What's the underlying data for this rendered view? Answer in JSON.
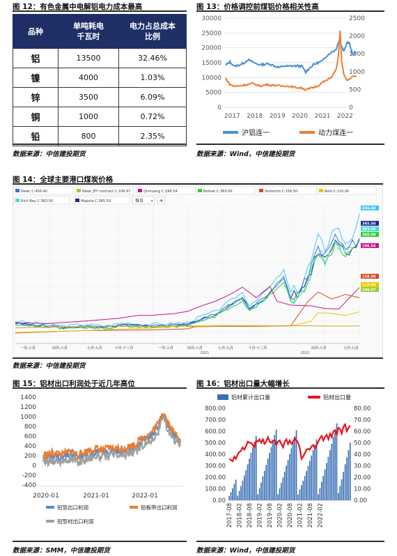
{
  "fig12": {
    "title": "图 12：有色金属中电解铝电力成本最高",
    "headers": [
      "品种",
      "单吨耗电\n千瓦时",
      "电力占总成本\n比例"
    ],
    "rows": [
      [
        "铝",
        "13500",
        "32.46%"
      ],
      [
        "镍",
        "4000",
        "1.03%"
      ],
      [
        "锌",
        "3500",
        "6.09%"
      ],
      [
        "铜",
        "1000",
        "0.72%"
      ],
      [
        "铅",
        "800",
        "2.35%"
      ]
    ],
    "source": "数据来源：中信建投期货"
  },
  "fig13": {
    "title": "图 13：价格调控前煤铝价格相关性高",
    "source": "数据来源：Wind，中信建投期货",
    "chart_data": {
      "type": "line",
      "x_ticks": [
        "2017",
        "2018",
        "2019",
        "2020",
        "2021",
        "2022"
      ],
      "y_left": {
        "ticks": [
          "0",
          "5000",
          "10000",
          "15000",
          "20000",
          "25000",
          "30000"
        ],
        "range": [
          0,
          30000
        ]
      },
      "y_right": {
        "ticks": [
          "0",
          "500",
          "1000",
          "1500",
          "2000",
          "2500"
        ],
        "range": [
          0,
          2500
        ]
      },
      "series": [
        {
          "name": "沪铝连一",
          "color": "#4a8fd4",
          "axis": "left",
          "points": [
            [
              2016.7,
              14000
            ],
            [
              2016.9,
              15300
            ],
            [
              2017.1,
              13800
            ],
            [
              2017.3,
              14200
            ],
            [
              2017.5,
              14800
            ],
            [
              2017.7,
              16000
            ],
            [
              2017.9,
              15300
            ],
            [
              2018.1,
              14500
            ],
            [
              2018.3,
              14300
            ],
            [
              2018.5,
              14600
            ],
            [
              2018.7,
              14500
            ],
            [
              2018.9,
              13800
            ],
            [
              2019.1,
              13400
            ],
            [
              2019.3,
              13900
            ],
            [
              2019.5,
              13800
            ],
            [
              2019.7,
              13900
            ],
            [
              2019.9,
              13900
            ],
            [
              2020.1,
              13800
            ],
            [
              2020.25,
              11800
            ],
            [
              2020.4,
              13000
            ],
            [
              2020.6,
              14300
            ],
            [
              2020.8,
              15000
            ],
            [
              2021.0,
              15600
            ],
            [
              2021.2,
              17500
            ],
            [
              2021.4,
              18500
            ],
            [
              2021.6,
              19500
            ],
            [
              2021.75,
              22800
            ],
            [
              2021.85,
              20500
            ],
            [
              2021.95,
              19000
            ],
            [
              2022.1,
              22000
            ],
            [
              2022.2,
              21500
            ],
            [
              2022.35,
              17500
            ],
            [
              2022.5,
              18600
            ]
          ]
        },
        {
          "name": "动力煤连一",
          "color": "#ec7c2f",
          "axis": "right",
          "points": [
            [
              2016.7,
              820
            ],
            [
              2016.9,
              640
            ],
            [
              2017.1,
              590
            ],
            [
              2017.3,
              600
            ],
            [
              2017.5,
              620
            ],
            [
              2017.7,
              640
            ],
            [
              2017.9,
              670
            ],
            [
              2018.1,
              620
            ],
            [
              2018.3,
              600
            ],
            [
              2018.5,
              640
            ],
            [
              2018.7,
              620
            ],
            [
              2018.9,
              620
            ],
            [
              2019.1,
              600
            ],
            [
              2019.3,
              600
            ],
            [
              2019.5,
              590
            ],
            [
              2019.7,
              570
            ],
            [
              2019.9,
              550
            ],
            [
              2020.1,
              540
            ],
            [
              2020.25,
              490
            ],
            [
              2020.4,
              520
            ],
            [
              2020.6,
              560
            ],
            [
              2020.8,
              600
            ],
            [
              2021.0,
              700
            ],
            [
              2021.2,
              760
            ],
            [
              2021.4,
              850
            ],
            [
              2021.6,
              1050
            ],
            [
              2021.7,
              1400
            ],
            [
              2021.78,
              2150
            ],
            [
              2021.85,
              1300
            ],
            [
              2021.95,
              900
            ],
            [
              2022.1,
              750
            ],
            [
              2022.3,
              850
            ],
            [
              2022.5,
              880
            ]
          ]
        }
      ]
    }
  },
  "fig14": {
    "title": "图 14：全球主要港口煤炭价格",
    "source": "数据来源：中信建投期货",
    "legend_row1": [
      {
        "label": "Newc C:456.40",
        "color": "#4169e1"
      },
      {
        "label": "Newc JPY contract C:109.97",
        "color": "#9acd32"
      },
      {
        "label": "Qinhuang C:196.54",
        "color": "#c71585"
      },
      {
        "label": "Bolivar C:360.00",
        "color": "#32cd32"
      },
      {
        "label": "Vostochn C:158.50",
        "color": "#d9461f"
      },
      {
        "label": "Bolo C:110.00",
        "color": "#e6c800"
      }
    ],
    "legend_row2": [
      {
        "label": "Rich Bay C:363.50",
        "color": "#40e0d0"
      },
      {
        "label": "Maputo C:365.50",
        "color": "#1e2b8c"
      }
    ],
    "dropdown": "每日",
    "right_badges": [
      {
        "label": "456.40",
        "color": "#40c4ff"
      },
      {
        "label": "365.50",
        "color": "#1e2b8c"
      },
      {
        "label": "363.50",
        "color": "#40e0d0"
      },
      {
        "label": "360.00",
        "color": "#32cd32"
      },
      {
        "label": "196.54",
        "color": "#c71585"
      },
      {
        "label": "158.50",
        "color": "#d9461f"
      },
      {
        "label": "110.00",
        "color": "#e6c800"
      },
      {
        "label": "109.97",
        "color": "#9acd32"
      }
    ],
    "x_ticks": [
      "一月-三月",
      "四月-六月",
      "七月-九月",
      "十月-十二月",
      "一月-三月",
      "四月-六月",
      "七月-九月",
      "十月-十二月",
      "四月-六月",
      "七月-九月"
    ],
    "years": [
      "2021",
      "2022"
    ]
  },
  "fig15": {
    "title": "图 15：铝材出口利润处于近几年高位",
    "source": "数据来源：SMM，中信建投期货",
    "chart_data": {
      "type": "line",
      "x_ticks": [
        "2020-01",
        "2021-01",
        "2022-01"
      ],
      "y_ticks": [
        "-400",
        "-200",
        "0",
        "200",
        "400",
        "600",
        "800",
        "1000",
        "1200",
        "1400"
      ],
      "y_range": [
        -400,
        1400
      ],
      "series": [
        {
          "name": "铝箔出口利润",
          "color": "#4a8fd4"
        },
        {
          "name": "铝板带出口利润",
          "color": "#ec7c2f"
        },
        {
          "name": "铝型材出口利润",
          "color": "#a0a0a0"
        }
      ]
    }
  },
  "fig16": {
    "title": "图 16：铝材出口量大幅增长",
    "source": "数据来源：Wind，中信建投期货",
    "chart_data": {
      "type": "bar",
      "x_ticks": [
        "2017-08",
        "2018-02",
        "2018-08",
        "2019-02",
        "2019-08",
        "2020-02",
        "2020-08",
        "2021-02",
        "2021-08",
        "2022-02"
      ],
      "y_left": {
        "ticks": [
          "0.00",
          "100.00",
          "200.00",
          "300.00",
          "400.00",
          "500.00",
          "600.00",
          "700.00",
          "800.00"
        ],
        "range": [
          0,
          800
        ]
      },
      "y_right": {
        "ticks": [
          "0.00",
          "10.00",
          "20.00",
          "30.00",
          "40.00",
          "50.00",
          "60.00",
          "70.00",
          "80.00"
        ],
        "range": [
          0,
          80
        ]
      },
      "series": [
        {
          "name": "铝材累计出口量",
          "color": "#3a6fb7",
          "type": "bar"
        },
        {
          "name": "铝材出口量",
          "color": "#e8141b",
          "type": "line",
          "values": [
            36,
            35,
            34,
            38,
            36,
            40,
            42,
            43,
            46,
            44,
            47,
            51,
            50,
            50,
            48,
            46,
            52,
            51,
            53,
            50,
            53,
            49,
            51,
            55,
            51,
            50,
            52,
            52,
            48,
            51,
            52,
            49,
            46,
            51,
            53,
            49,
            52,
            49,
            51,
            54,
            52,
            50,
            45,
            36,
            38,
            41,
            44,
            45,
            44,
            47,
            48,
            45,
            48,
            51,
            54,
            56,
            52,
            55,
            57,
            53,
            58,
            55,
            60,
            61,
            57,
            63,
            62,
            58,
            64,
            66,
            60,
            63,
            65
          ]
        }
      ]
    }
  }
}
